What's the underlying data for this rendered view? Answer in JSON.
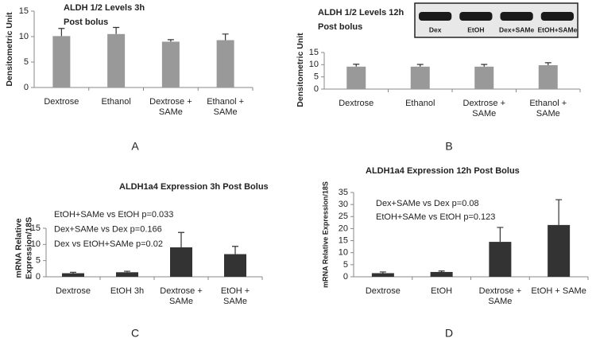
{
  "chart_data": [
    {
      "type": "bar",
      "title": "ALDH 1/2  Levels 3h",
      "subtitle": "Post bolus",
      "ylabel": "Densitometric Unit",
      "categories": [
        "Dextrose",
        "Ethanol",
        "Dextrose +\nSAMe",
        "Ethanol +\nSAMe"
      ],
      "values": [
        10.1,
        10.5,
        9.0,
        9.3
      ],
      "errors": [
        1.5,
        1.3,
        0.4,
        1.2
      ],
      "color": "#999999",
      "ylim": [
        0,
        15
      ],
      "yticks": [
        0,
        5,
        10,
        15
      ],
      "panel": "A"
    },
    {
      "type": "bar",
      "title": "ALDH 1/2 Levels 12h",
      "subtitle": "Post bolus",
      "ylabel": "Densitometric Unit",
      "categories": [
        "Dextrose",
        "Ethanol",
        "Dextrose +\nSAMe",
        "Ethanol +\nSAMe"
      ],
      "values": [
        9.2,
        9.2,
        9.2,
        9.8
      ],
      "errors": [
        1.0,
        0.9,
        0.9,
        1.0
      ],
      "color": "#999999",
      "ylim": [
        0,
        15
      ],
      "yticks": [
        0,
        5,
        10,
        15
      ],
      "panel": "B",
      "blot_labels": [
        "Dex",
        "EtOH",
        "Dex+SAMe",
        "EtOH+SAMe"
      ]
    },
    {
      "type": "bar",
      "title": "ALDH1a4 Expression 3h Post Bolus",
      "ylabel": "mRNA Relative\nExpression/18S",
      "annotations": [
        "EtOH+SAMe vs EtOH p=0.033",
        "Dex+SAMe vs Dex p=0.166",
        "Dex vs EtOH+SAMe p=0.02"
      ],
      "categories": [
        "Dextrose",
        "EtOH 3h",
        "Dextrose +\nSAMe",
        "EtOH +\nSAMe"
      ],
      "values": [
        1.1,
        1.4,
        9.1,
        7.0
      ],
      "errors": [
        0.3,
        0.3,
        4.6,
        2.4
      ],
      "color": "#333333",
      "ylim": [
        0,
        15
      ],
      "yticks": [
        0,
        5,
        10,
        15
      ],
      "panel": "C"
    },
    {
      "type": "bar",
      "title": "ALDH1a4 Expression 12h Post Bolus",
      "ylabel": "mRNA Relative Expression/18S",
      "annotations": [
        "Dex+SAMe vs Dex p=0.08",
        "EtOH+SAMe vs EtOH p=0.123"
      ],
      "categories": [
        "Dextrose",
        "EtOH",
        "Dextrose +\nSAMe",
        "EtOH + SAMe"
      ],
      "values": [
        1.5,
        2.0,
        14.5,
        21.5
      ],
      "errors": [
        0.5,
        0.4,
        6.0,
        10.5
      ],
      "color": "#333333",
      "ylim": [
        0,
        35
      ],
      "yticks": [
        0,
        5,
        10,
        15,
        20,
        25,
        30,
        35
      ],
      "panel": "D"
    }
  ]
}
